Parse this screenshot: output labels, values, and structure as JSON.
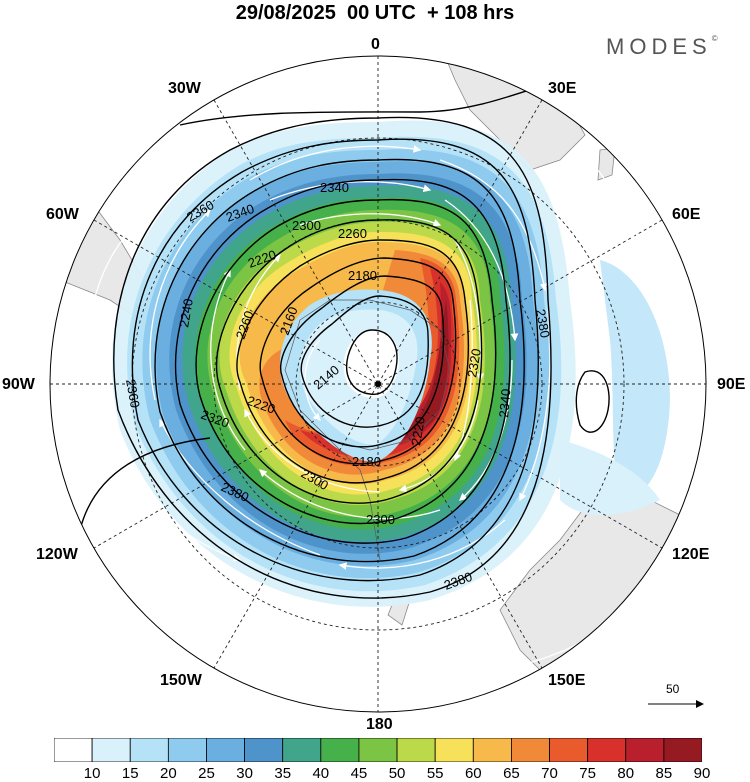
{
  "header": {
    "title": "29/08/2025  00 UTC  + 108 hrs",
    "brand": "MODES",
    "brand_mark": "©"
  },
  "map": {
    "projection": "south-polar-stereographic",
    "longitude_labels": {
      "top": "0",
      "top_right": "30E",
      "right_upper": "60E",
      "right": "90E",
      "right_lower": "120E",
      "bottom_right": "150E",
      "bottom": "180",
      "bottom_left": "150W",
      "left_lower": "120W",
      "left": "90W",
      "left_upper": "60W",
      "top_left": "30W"
    },
    "contour_labels": [
      "2340",
      "2360",
      "2340",
      "2300",
      "2260",
      "2220",
      "2180",
      "2160",
      "2260",
      "2240",
      "2140",
      "2320",
      "2220",
      "2180",
      "2220",
      "2300",
      "2300",
      "2320",
      "2340",
      "2360",
      "2380",
      "2380",
      "2380"
    ],
    "wind_scale": {
      "value": "50",
      "icon": "arrow-right-icon"
    }
  },
  "colorbar": {
    "ticks": [
      "10",
      "15",
      "20",
      "25",
      "30",
      "35",
      "40",
      "45",
      "50",
      "55",
      "60",
      "65",
      "70",
      "75",
      "80",
      "85",
      "90"
    ],
    "colors": [
      "#ffffff",
      "#d9f1fb",
      "#b5e2f7",
      "#8ecbef",
      "#6aafe0",
      "#4f93cb",
      "#40a58a",
      "#46b04a",
      "#7cc443",
      "#bcd94a",
      "#f8e15a",
      "#f6b94a",
      "#f18a38",
      "#e95a2d",
      "#d8312b",
      "#b91f2c",
      "#961a22"
    ]
  }
}
